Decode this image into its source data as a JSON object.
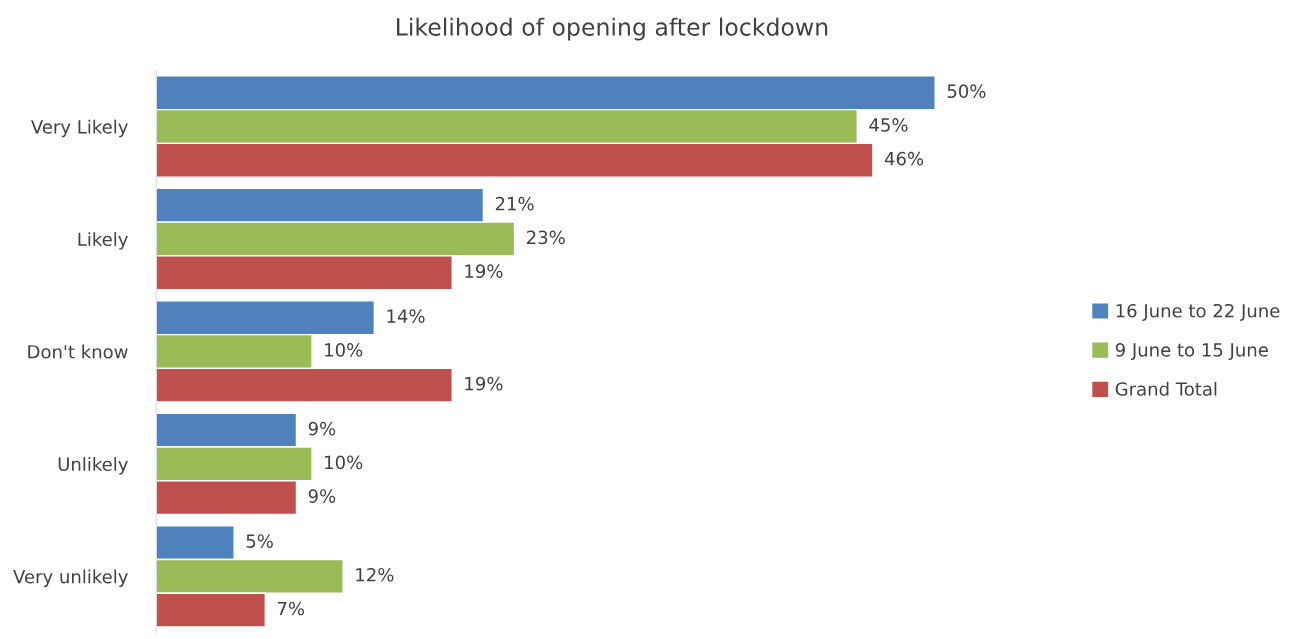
{
  "chart_data": {
    "type": "bar",
    "orientation": "horizontal",
    "title": "Likelihood of opening after lockdown",
    "categories": [
      "Very Likely",
      "Likely",
      "Don't know",
      "Unlikely",
      "Very unlikely"
    ],
    "series": [
      {
        "name": "16 June to 22 June",
        "color": "#4f81bd",
        "values": [
          50,
          21,
          14,
          9,
          5
        ],
        "value_labels": [
          "50%",
          "21%",
          "14%",
          "9%",
          "5%"
        ]
      },
      {
        "name": "9 June to 15 June",
        "color": "#9bbb59",
        "values": [
          45,
          23,
          10,
          10,
          12
        ],
        "value_labels": [
          "45%",
          "23%",
          "10%",
          "10%",
          "12%"
        ]
      },
      {
        "name": "Grand Total",
        "color": "#c0504d",
        "values": [
          46,
          19,
          19,
          9,
          7
        ],
        "value_labels": [
          "46%",
          "19%",
          "19%",
          "9%",
          "7%"
        ]
      }
    ],
    "legend": "right",
    "grid": false
  }
}
